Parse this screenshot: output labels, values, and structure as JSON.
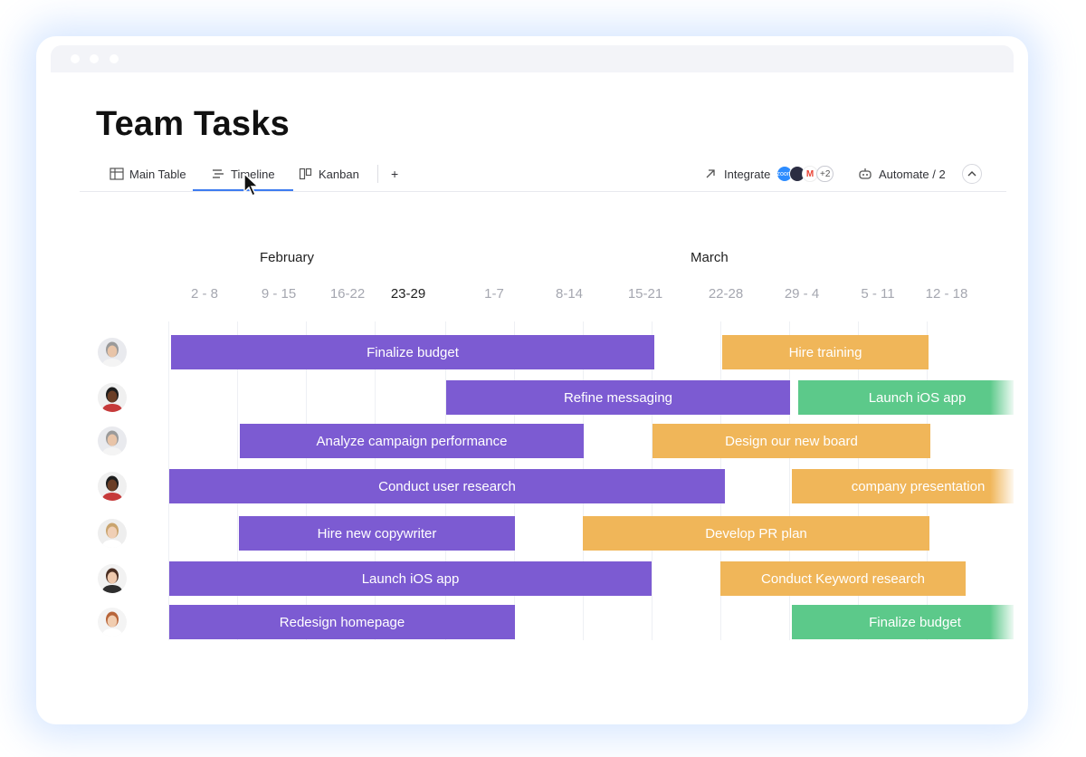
{
  "board": {
    "title": "Team Tasks"
  },
  "tabs": [
    {
      "label": "Main Table",
      "icon": "table-icon"
    },
    {
      "label": "Timeline",
      "icon": "timeline-icon"
    },
    {
      "label": "Kanban",
      "icon": "kanban-icon"
    },
    {
      "label": "+",
      "icon": "add-view-icon"
    }
  ],
  "toolbar": {
    "integrate_label": "Integrate",
    "integration_more": "+2",
    "automate_label": "Automate / 2",
    "integration_badges": [
      {
        "text": "zoom",
        "color": "#2d8cff"
      },
      {
        "text": "",
        "color": "#2b2d42"
      },
      {
        "text": "M",
        "color": "#ea4335"
      }
    ]
  },
  "timeline": {
    "months": [
      "February",
      "March"
    ],
    "weeks": [
      "2 - 8",
      "9 - 15",
      "16-22",
      "23-29",
      "1-7",
      "8-14",
      "15-21",
      "22-28",
      "29 - 4",
      "5 - 11",
      "12 - 18"
    ],
    "current_week": "23-29",
    "rows": [
      {
        "avatar": "man-beard",
        "tasks": [
          {
            "label": "Finalize budget",
            "color": "purple"
          },
          {
            "label": "Hire training",
            "color": "orange"
          }
        ]
      },
      {
        "avatar": "man-dark",
        "tasks": [
          {
            "label": "Refine messaging",
            "color": "purple"
          },
          {
            "label": "Launch iOS app",
            "color": "green"
          }
        ]
      },
      {
        "avatar": "man-beard",
        "tasks": [
          {
            "label": "Analyze campaign performance",
            "color": "purple"
          },
          {
            "label": "Design our new board",
            "color": "orange"
          }
        ]
      },
      {
        "avatar": "man-dark",
        "tasks": [
          {
            "label": "Conduct user research",
            "color": "purple"
          },
          {
            "label": "company presentation",
            "color": "orange"
          }
        ]
      },
      {
        "avatar": "woman-light",
        "tasks": [
          {
            "label": "Hire new copywriter",
            "color": "purple"
          },
          {
            "label": "Develop PR plan",
            "color": "orange"
          }
        ]
      },
      {
        "avatar": "woman-dark-hair",
        "tasks": [
          {
            "label": "Launch iOS app",
            "color": "purple"
          },
          {
            "label": "Conduct Keyword research",
            "color": "orange"
          }
        ]
      },
      {
        "avatar": "woman-red-hair",
        "tasks": [
          {
            "label": "Redesign homepage",
            "color": "purple"
          },
          {
            "label": "Finalize budget",
            "color": "green"
          }
        ]
      }
    ]
  },
  "colors": {
    "purple": "#7c5bd2",
    "orange": "#f0b659",
    "green": "#5cc98a",
    "active_tab": "#3d7cf0"
  }
}
